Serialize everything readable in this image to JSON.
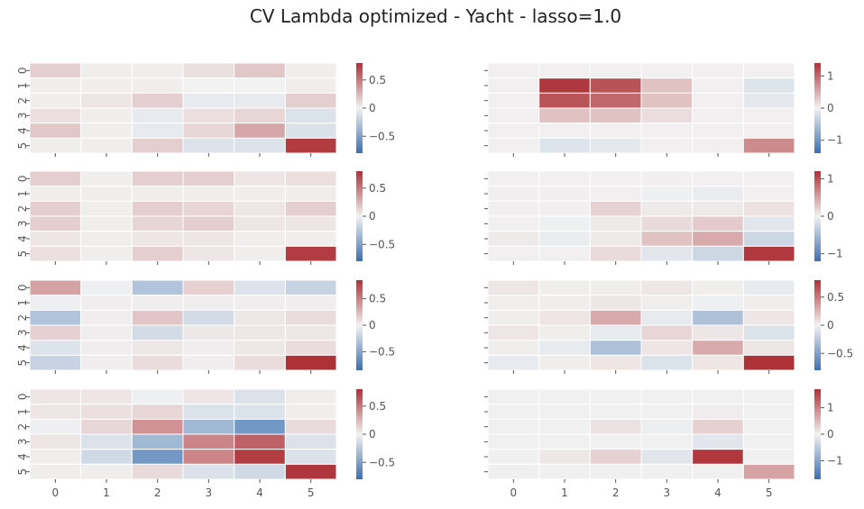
{
  "title": "CV Lambda optimized - Yacht - lasso=1.0",
  "colors": {
    "low": "#3b6fb0",
    "mid": "#f2f2f2",
    "high": "#ad3137",
    "tick": "#555555",
    "cellLine": "#ffffff"
  },
  "chart_data": [
    {
      "type": "heatmap",
      "categories": [
        "0",
        "1",
        "2",
        "3",
        "4",
        "5"
      ],
      "colorbar_ticks": [
        "0.5",
        "0",
        "−0.5"
      ],
      "colorbar_tick_values": [
        0.5,
        0,
        -0.5
      ],
      "vmin": -0.8,
      "vmax": 0.8,
      "values": [
        [
          0.15,
          0.02,
          0.02,
          0.08,
          0.18,
          0.02
        ],
        [
          0.02,
          0.02,
          0.02,
          0.0,
          0.0,
          0.02
        ],
        [
          0.02,
          0.05,
          0.15,
          -0.05,
          -0.05,
          0.15
        ],
        [
          0.08,
          0.02,
          -0.05,
          0.08,
          0.12,
          -0.1
        ],
        [
          0.18,
          0.02,
          -0.05,
          0.12,
          0.32,
          -0.1
        ],
        [
          0.02,
          0.02,
          0.15,
          -0.1,
          -0.1,
          0.75
        ]
      ]
    },
    {
      "type": "heatmap",
      "categories": [
        "0",
        "1",
        "2",
        "3",
        "4",
        "5"
      ],
      "colorbar_ticks": [
        "1",
        "0",
        "−1"
      ],
      "colorbar_tick_values": [
        1,
        0,
        -1
      ],
      "vmin": -1.4,
      "vmax": 1.4,
      "values": [
        [
          0.02,
          0.02,
          0.02,
          0.02,
          0.02,
          0.02
        ],
        [
          0.02,
          1.35,
          1.15,
          0.35,
          0.02,
          -0.15
        ],
        [
          0.02,
          1.15,
          1.0,
          0.35,
          0.02,
          -0.1
        ],
        [
          0.02,
          0.35,
          0.35,
          0.15,
          0.02,
          0.02
        ],
        [
          0.02,
          0.02,
          0.02,
          0.02,
          0.02,
          0.02
        ],
        [
          0.02,
          -0.15,
          -0.1,
          0.02,
          0.02,
          0.75
        ]
      ]
    },
    {
      "type": "heatmap",
      "categories": [
        "0",
        "1",
        "2",
        "3",
        "4",
        "5"
      ],
      "colorbar_ticks": [
        "0.5",
        "0",
        "−0.5"
      ],
      "colorbar_tick_values": [
        0.5,
        0,
        -0.5
      ],
      "vmin": -0.8,
      "vmax": 0.8,
      "values": [
        [
          0.15,
          0.02,
          0.15,
          0.15,
          0.05,
          0.08
        ],
        [
          0.02,
          0.02,
          0.02,
          0.02,
          0.02,
          0.02
        ],
        [
          0.15,
          0.02,
          0.15,
          0.12,
          0.05,
          0.15
        ],
        [
          0.15,
          0.02,
          0.12,
          0.15,
          0.05,
          0.05
        ],
        [
          0.05,
          0.02,
          0.05,
          0.05,
          0.02,
          0.02
        ],
        [
          0.08,
          0.02,
          0.15,
          0.05,
          0.02,
          0.75
        ]
      ]
    },
    {
      "type": "heatmap",
      "categories": [
        "0",
        "1",
        "2",
        "3",
        "4",
        "5"
      ],
      "colorbar_ticks": [
        "1",
        "0",
        "−1"
      ],
      "colorbar_tick_values": [
        1,
        0,
        -1
      ],
      "vmin": -1.2,
      "vmax": 1.2,
      "values": [
        [
          0.02,
          0.02,
          0.02,
          0.02,
          0.02,
          0.02
        ],
        [
          0.02,
          0.02,
          0.02,
          -0.02,
          -0.05,
          0.02
        ],
        [
          0.02,
          0.02,
          0.2,
          0.05,
          0.05,
          0.1
        ],
        [
          0.02,
          -0.02,
          0.05,
          0.15,
          0.25,
          -0.1
        ],
        [
          0.05,
          -0.05,
          0.05,
          0.3,
          0.45,
          -0.25
        ],
        [
          0.02,
          0.02,
          0.15,
          -0.1,
          -0.25,
          1.15
        ]
      ]
    },
    {
      "type": "heatmap",
      "categories": [
        "0",
        "1",
        "2",
        "3",
        "4",
        "5"
      ],
      "colorbar_ticks": [
        "0.5",
        "0",
        "−0.5"
      ],
      "colorbar_tick_values": [
        0.5,
        0,
        -0.5
      ],
      "vmin": -0.85,
      "vmax": 0.85,
      "values": [
        [
          0.35,
          -0.02,
          -0.3,
          0.15,
          -0.1,
          -0.2
        ],
        [
          -0.02,
          0.02,
          0.02,
          0.02,
          0.02,
          0.02
        ],
        [
          -0.3,
          0.02,
          0.2,
          -0.15,
          0.05,
          0.1
        ],
        [
          0.15,
          0.02,
          -0.15,
          0.05,
          0.05,
          0.05
        ],
        [
          -0.1,
          0.02,
          0.05,
          0.02,
          0.05,
          0.1
        ],
        [
          -0.2,
          0.02,
          0.1,
          0.02,
          0.1,
          0.85
        ]
      ]
    },
    {
      "type": "heatmap",
      "categories": [
        "0",
        "1",
        "2",
        "3",
        "4",
        "5"
      ],
      "colorbar_ticks": [
        "0.5",
        "0",
        "−0.5"
      ],
      "colorbar_tick_values": [
        0.5,
        0,
        -0.5
      ],
      "vmin": -0.8,
      "vmax": 0.8,
      "values": [
        [
          0.05,
          0.02,
          0.02,
          0.05,
          0.02,
          -0.05
        ],
        [
          0.02,
          0.02,
          0.05,
          0.02,
          -0.02,
          0.02
        ],
        [
          0.02,
          0.05,
          0.3,
          -0.05,
          -0.3,
          0.05
        ],
        [
          0.05,
          0.02,
          -0.05,
          0.12,
          0.05,
          -0.1
        ],
        [
          0.02,
          -0.05,
          -0.3,
          0.05,
          0.3,
          0.05
        ],
        [
          -0.05,
          0.02,
          0.05,
          -0.1,
          0.05,
          0.8
        ]
      ]
    },
    {
      "type": "heatmap",
      "categories": [
        "0",
        "1",
        "2",
        "3",
        "4",
        "5"
      ],
      "colorbar_ticks": [
        "0.5",
        "0",
        "−0.5"
      ],
      "colorbar_tick_values": [
        0.5,
        0,
        -0.5
      ],
      "vmin": -0.8,
      "vmax": 0.8,
      "values": [
        [
          0.05,
          0.05,
          -0.02,
          0.05,
          -0.1,
          0.02
        ],
        [
          0.05,
          0.08,
          0.12,
          -0.1,
          -0.1,
          0.02
        ],
        [
          -0.02,
          0.12,
          0.4,
          -0.35,
          -0.55,
          0.1
        ],
        [
          0.05,
          -0.1,
          -0.35,
          0.45,
          0.6,
          -0.1
        ],
        [
          0.02,
          -0.15,
          -0.55,
          0.45,
          0.75,
          -0.1
        ],
        [
          0.02,
          0.02,
          0.1,
          -0.1,
          -0.15,
          0.78
        ]
      ]
    },
    {
      "type": "heatmap",
      "categories": [
        "0",
        "1",
        "2",
        "3",
        "4",
        "5"
      ],
      "colorbar_ticks": [
        "1",
        "0",
        "−1"
      ],
      "colorbar_tick_values": [
        1,
        0,
        -1
      ],
      "vmin": -1.7,
      "vmax": 1.7,
      "values": [
        [
          0.02,
          0.02,
          0.02,
          0.02,
          0.02,
          0.02
        ],
        [
          0.02,
          0.02,
          0.02,
          0.02,
          0.05,
          0.02
        ],
        [
          0.02,
          0.02,
          0.15,
          -0.05,
          0.3,
          0.02
        ],
        [
          0.02,
          0.02,
          0.02,
          0.02,
          -0.15,
          0.02
        ],
        [
          0.02,
          0.1,
          0.3,
          -0.15,
          1.65,
          0.02
        ],
        [
          0.02,
          0.02,
          0.02,
          0.02,
          0.02,
          0.7
        ]
      ]
    }
  ]
}
